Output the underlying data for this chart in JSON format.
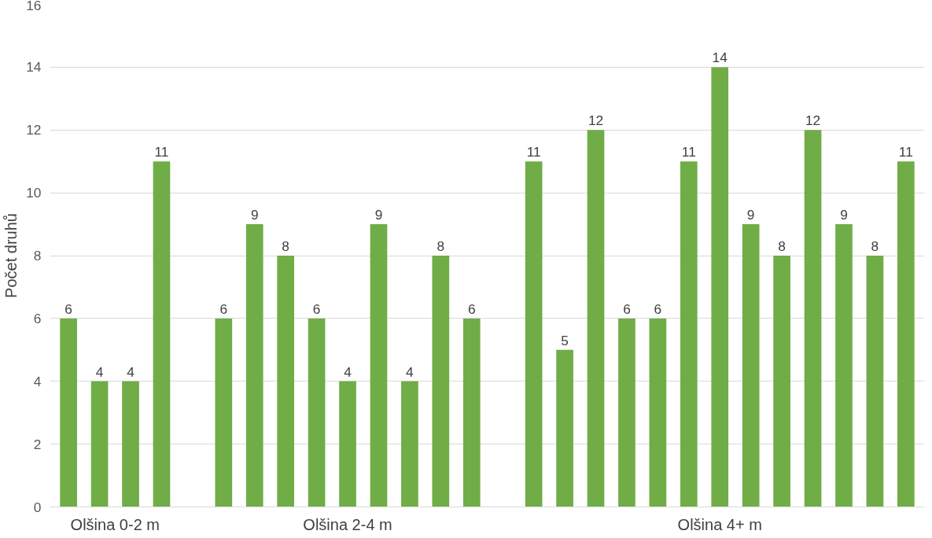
{
  "chart_data": {
    "type": "bar",
    "ylabel": "Počet druhů",
    "categories": [
      null,
      null,
      null,
      null,
      null,
      null,
      null,
      null,
      null,
      null,
      null,
      null,
      null,
      null,
      null,
      null,
      null,
      null,
      null,
      null,
      null,
      null,
      null,
      null,
      null,
      null,
      null,
      null
    ],
    "values": [
      6,
      4,
      4,
      11,
      null,
      6,
      9,
      8,
      6,
      4,
      9,
      4,
      8,
      6,
      null,
      11,
      5,
      12,
      6,
      6,
      11,
      14,
      9,
      8,
      12,
      9,
      8,
      11
    ],
    "color": "#70ad47",
    "annotations": [
      "Olšina 0-2 m",
      "Olšina 2-4 m",
      "Olšina 4+ m"
    ],
    "ylim": [
      0,
      16
    ],
    "yticks": [
      0,
      2,
      4,
      6,
      8,
      10,
      12,
      14,
      16
    ],
    "grid": "y",
    "data_labels": true
  }
}
